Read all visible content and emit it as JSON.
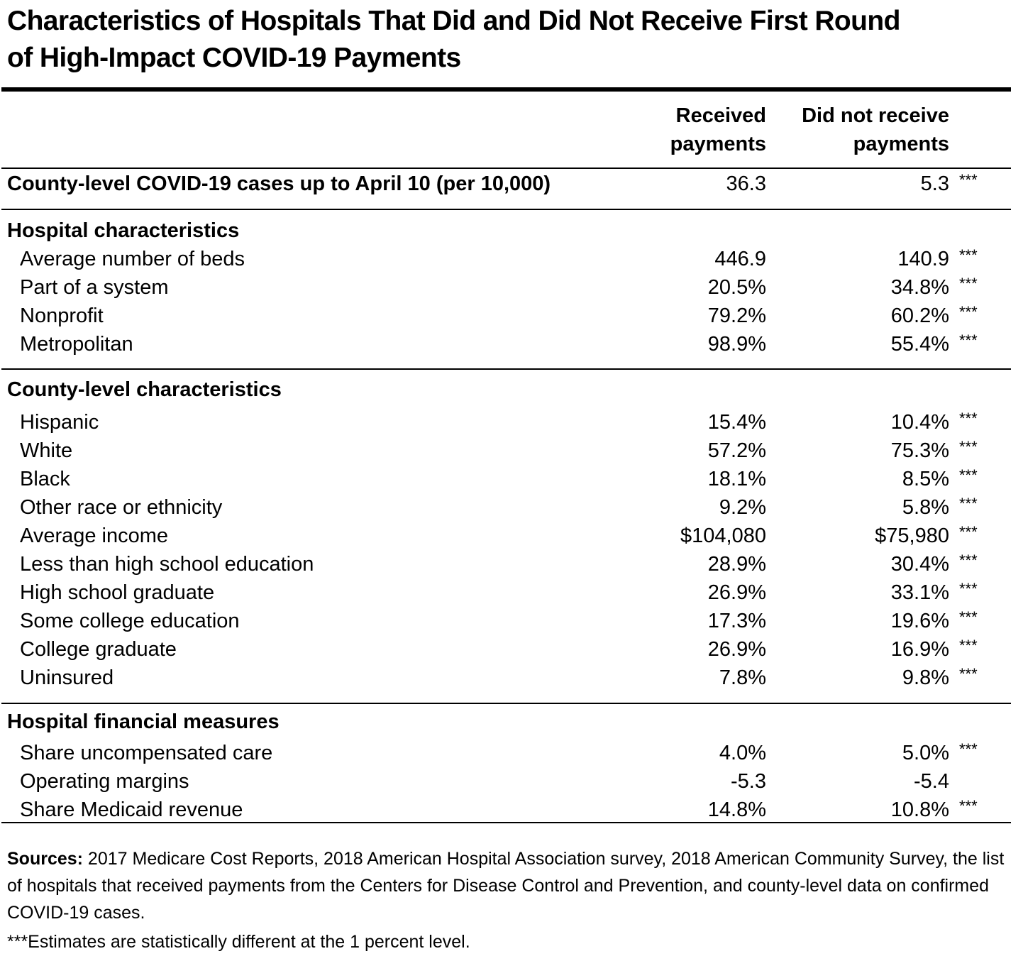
{
  "title_line1": "Characteristics of Hospitals That Did and Did Not Receive First Round",
  "title_line2": "of High-Impact COVID-19 Payments",
  "columns": {
    "received_line1": "Received",
    "received_line2": "payments",
    "not_received_line1": "Did not receive",
    "not_received_line2": "payments"
  },
  "cases_row": {
    "label": "County-level COVID-19 cases up to April 10 (per 10,000)",
    "received": "36.3",
    "not_received": "5.3",
    "sig": "***"
  },
  "hospital": {
    "heading": "Hospital characteristics",
    "rows": [
      {
        "label": "Average number of beds",
        "received": "446.9",
        "not_received": "140.9",
        "sig": "***"
      },
      {
        "label": "Part of a system",
        "received": "20.5%",
        "not_received": "34.8%",
        "sig": "***"
      },
      {
        "label": "Nonprofit",
        "received": "79.2%",
        "not_received": "60.2%",
        "sig": "***"
      },
      {
        "label": "Metropolitan",
        "received": "98.9%",
        "not_received": "55.4%",
        "sig": "***"
      }
    ]
  },
  "county": {
    "heading": "County-level characteristics",
    "rows": [
      {
        "label": "Hispanic",
        "received": "15.4%",
        "not_received": "10.4%",
        "sig": "***"
      },
      {
        "label": "White",
        "received": "57.2%",
        "not_received": "75.3%",
        "sig": "***"
      },
      {
        "label": "Black",
        "received": "18.1%",
        "not_received": "8.5%",
        "sig": "***"
      },
      {
        "label": "Other race or ethnicity",
        "received": "9.2%",
        "not_received": "5.8%",
        "sig": "***"
      },
      {
        "label": "Average income",
        "received": "$104,080",
        "not_received": "$75,980",
        "sig": "***"
      },
      {
        "label": "Less than high school education",
        "received": "28.9%",
        "not_received": "30.4%",
        "sig": "***"
      },
      {
        "label": "High school graduate",
        "received": "26.9%",
        "not_received": "33.1%",
        "sig": "***"
      },
      {
        "label": "Some college education",
        "received": "17.3%",
        "not_received": "19.6%",
        "sig": "***"
      },
      {
        "label": "College graduate",
        "received": "26.9%",
        "not_received": "16.9%",
        "sig": "***"
      },
      {
        "label": "Uninsured",
        "received": "7.8%",
        "not_received": "9.8%",
        "sig": "***"
      }
    ]
  },
  "financial": {
    "heading": "Hospital financial measures",
    "rows": [
      {
        "label": "Share uncompensated care",
        "received": "4.0%",
        "not_received": "5.0%",
        "sig": "***"
      },
      {
        "label": "Operating margins",
        "received": "-5.3",
        "not_received": "-5.4",
        "sig": ""
      },
      {
        "label": "Share Medicaid revenue",
        "received": "14.8%",
        "not_received": "10.8%",
        "sig": "***"
      }
    ]
  },
  "notes": {
    "sources_label": "Sources:",
    "sources_text": " 2017 Medicare Cost Reports, 2018 American Hospital Association survey, 2018 American Community Survey, the list of hospitals that received payments from the Centers for Disease Control and Prevention, and county-level data on confirmed COVID-19 cases.",
    "significance": "***Estimates are statistically different at the 1 percent level."
  }
}
